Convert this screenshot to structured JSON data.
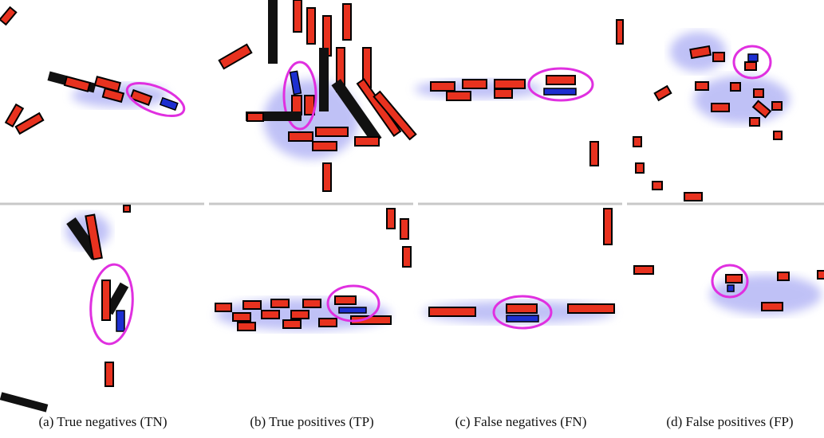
{
  "captions": [
    "(a) True negatives (TN)",
    "(b) True positives (TP)",
    "(c) False negatives (FN)",
    "(d) False positives (FP)"
  ]
}
